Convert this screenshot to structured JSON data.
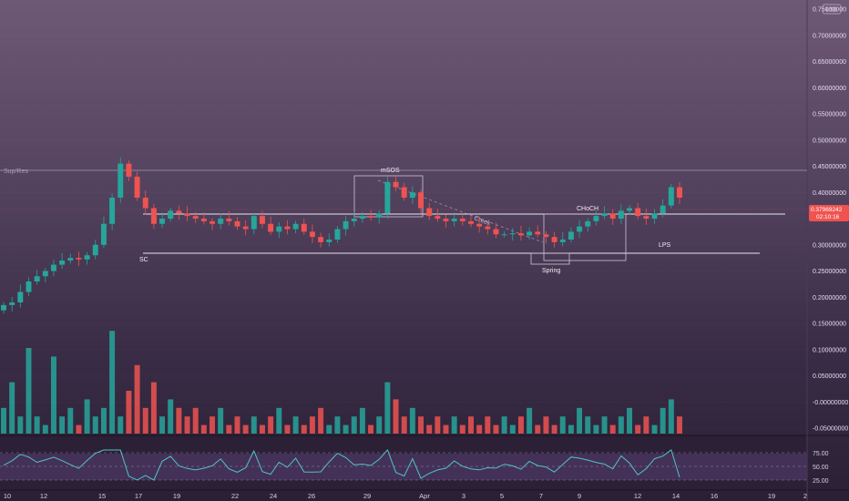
{
  "currency_badge": "USD",
  "current_price": {
    "value": "0.37969242",
    "countdown": "02:10:16"
  },
  "chart_data": {
    "type": "candlestick",
    "price_axis": {
      "ticks": [
        "0.75000000",
        "0.70000000",
        "0.65000000",
        "0.60000000",
        "0.55000000",
        "0.50000000",
        "0.45000000",
        "0.40000000",
        "0.35000000",
        "0.30000000",
        "0.25000000",
        "0.20000000",
        "0.15000000",
        "0.10000000",
        "0.05000000",
        "-0.00000000",
        "-0.05000000"
      ],
      "tick_values": [
        0.75,
        0.7,
        0.65,
        0.6,
        0.55,
        0.5,
        0.45,
        0.4,
        0.35,
        0.3,
        0.25,
        0.2,
        0.15,
        0.1,
        0.05,
        0.0,
        -0.05
      ]
    },
    "date_axis": [
      "10",
      "12",
      "15",
      "17",
      "19",
      "22",
      "24",
      "26",
      "29",
      "Apr",
      "3",
      "5",
      "7",
      "9",
      "12",
      "14",
      "16",
      "19",
      "2"
    ],
    "price_close_series": [
      0.185,
      0.19,
      0.21,
      0.23,
      0.24,
      0.25,
      0.262,
      0.27,
      0.275,
      0.272,
      0.28,
      0.3,
      0.34,
      0.39,
      0.455,
      0.43,
      0.39,
      0.37,
      0.34,
      0.35,
      0.365,
      0.36,
      0.355,
      0.35,
      0.345,
      0.34,
      0.35,
      0.345,
      0.335,
      0.33,
      0.355,
      0.34,
      0.325,
      0.335,
      0.33,
      0.34,
      0.325,
      0.315,
      0.305,
      0.31,
      0.33,
      0.345,
      0.35,
      0.355,
      0.352,
      0.36,
      0.42,
      0.41,
      0.39,
      0.4,
      0.37,
      0.355,
      0.35,
      0.345,
      0.35,
      0.345,
      0.34,
      0.335,
      0.33,
      0.32,
      0.32,
      0.322,
      0.318,
      0.325,
      0.32,
      0.315,
      0.305,
      0.31,
      0.325,
      0.335,
      0.345,
      0.355,
      0.36,
      0.35,
      0.365,
      0.37,
      0.355,
      0.35,
      0.36,
      0.375,
      0.41,
      0.39
    ],
    "volume_series": [
      0.03,
      0.06,
      0.02,
      0.1,
      0.02,
      0.01,
      0.09,
      0.02,
      0.03,
      0.01,
      0.04,
      0.02,
      0.03,
      0.12,
      0.02,
      0.05,
      0.08,
      0.03,
      0.06,
      0.02,
      0.04,
      0.03,
      0.02,
      0.03,
      0.01,
      0.02,
      0.03,
      0.01,
      0.02,
      0.01,
      0.02,
      0.01,
      0.02,
      0.03,
      0.01,
      0.02,
      0.01,
      0.02,
      0.03,
      0.01,
      0.02,
      0.01,
      0.02,
      0.03,
      0.01,
      0.02,
      0.06,
      0.04,
      0.02,
      0.03,
      0.02,
      0.01,
      0.02,
      0.01,
      0.02,
      0.01,
      0.02,
      0.01,
      0.02,
      0.01,
      0.02,
      0.01,
      0.02,
      0.03,
      0.01,
      0.02,
      0.01,
      0.02,
      0.01,
      0.03,
      0.02,
      0.01,
      0.02,
      0.01,
      0.02,
      0.03,
      0.01,
      0.02,
      0.01,
      0.03,
      0.04,
      0.02
    ],
    "rsi": {
      "ticks": [
        "75.00",
        "50.00",
        "25.00"
      ],
      "tick_values": [
        75,
        50,
        25
      ]
    },
    "annotations": [
      "Sup/Res",
      "SC",
      "mSOS",
      "Creek",
      "CHoCH",
      "Spring",
      "LPS"
    ],
    "ylim": [
      -0.07,
      0.78
    ],
    "colors": {
      "up": "#26a69a",
      "down": "#ef5350",
      "rsi_line": "#4fc3c9",
      "rsi_band": "#6a4c86",
      "current_price": "#ef5350"
    }
  }
}
